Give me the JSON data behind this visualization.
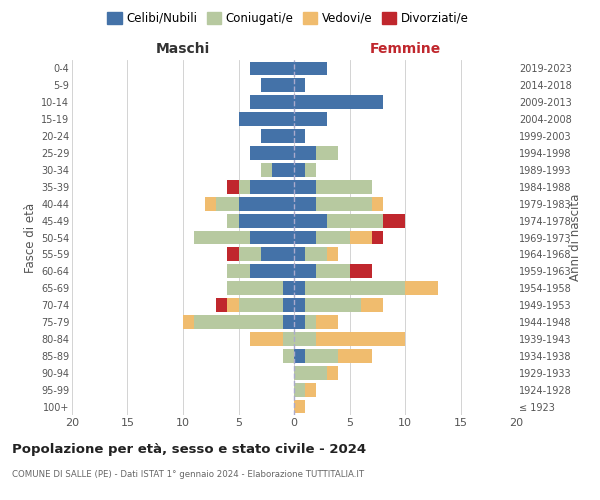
{
  "age_groups": [
    "100+",
    "95-99",
    "90-94",
    "85-89",
    "80-84",
    "75-79",
    "70-74",
    "65-69",
    "60-64",
    "55-59",
    "50-54",
    "45-49",
    "40-44",
    "35-39",
    "30-34",
    "25-29",
    "20-24",
    "15-19",
    "10-14",
    "5-9",
    "0-4"
  ],
  "birth_years": [
    "≤ 1923",
    "1924-1928",
    "1929-1933",
    "1934-1938",
    "1939-1943",
    "1944-1948",
    "1949-1953",
    "1954-1958",
    "1959-1963",
    "1964-1968",
    "1969-1973",
    "1974-1978",
    "1979-1983",
    "1984-1988",
    "1989-1993",
    "1994-1998",
    "1999-2003",
    "2004-2008",
    "2009-2013",
    "2014-2018",
    "2019-2023"
  ],
  "colors": {
    "celibi": "#4472a8",
    "coniugati": "#b7c9a0",
    "vedovi": "#f0bc6e",
    "divorziati": "#c0272d"
  },
  "maschi": {
    "celibi": [
      0,
      0,
      0,
      0,
      0,
      1,
      1,
      1,
      4,
      3,
      4,
      5,
      5,
      4,
      2,
      4,
      3,
      5,
      4,
      3,
      4
    ],
    "coniugati": [
      0,
      0,
      0,
      1,
      1,
      8,
      4,
      5,
      2,
      2,
      5,
      1,
      2,
      1,
      1,
      0,
      0,
      0,
      0,
      0,
      0
    ],
    "vedovi": [
      0,
      0,
      0,
      0,
      3,
      1,
      1,
      0,
      0,
      0,
      0,
      0,
      1,
      0,
      0,
      0,
      0,
      0,
      0,
      0,
      0
    ],
    "divorziati": [
      0,
      0,
      0,
      0,
      0,
      0,
      1,
      0,
      0,
      1,
      0,
      0,
      0,
      1,
      0,
      0,
      0,
      0,
      0,
      0,
      0
    ]
  },
  "femmine": {
    "celibi": [
      0,
      0,
      0,
      1,
      0,
      1,
      1,
      1,
      2,
      1,
      2,
      3,
      2,
      2,
      1,
      2,
      1,
      3,
      8,
      1,
      3
    ],
    "coniugati": [
      0,
      1,
      3,
      3,
      2,
      1,
      5,
      9,
      3,
      2,
      3,
      5,
      5,
      5,
      1,
      2,
      0,
      0,
      0,
      0,
      0
    ],
    "vedovi": [
      1,
      1,
      1,
      3,
      8,
      2,
      2,
      3,
      0,
      1,
      2,
      0,
      1,
      0,
      0,
      0,
      0,
      0,
      0,
      0,
      0
    ],
    "divorziati": [
      0,
      0,
      0,
      0,
      0,
      0,
      0,
      0,
      2,
      0,
      1,
      2,
      0,
      0,
      0,
      0,
      0,
      0,
      0,
      0,
      0
    ]
  },
  "title": "Popolazione per età, sesso e stato civile - 2024",
  "subtitle": "COMUNE DI SALLE (PE) - Dati ISTAT 1° gennaio 2024 - Elaborazione TUTTITALIA.IT",
  "xlabel_left": "Maschi",
  "xlabel_right": "Femmine",
  "ylabel_left": "Fasce di età",
  "ylabel_right": "Anni di nascita",
  "xlim": 20,
  "legend_labels": [
    "Celibi/Nubili",
    "Coniugati/e",
    "Vedovi/e",
    "Divorziati/e"
  ],
  "background_color": "#ffffff",
  "grid_color": "#cccccc"
}
